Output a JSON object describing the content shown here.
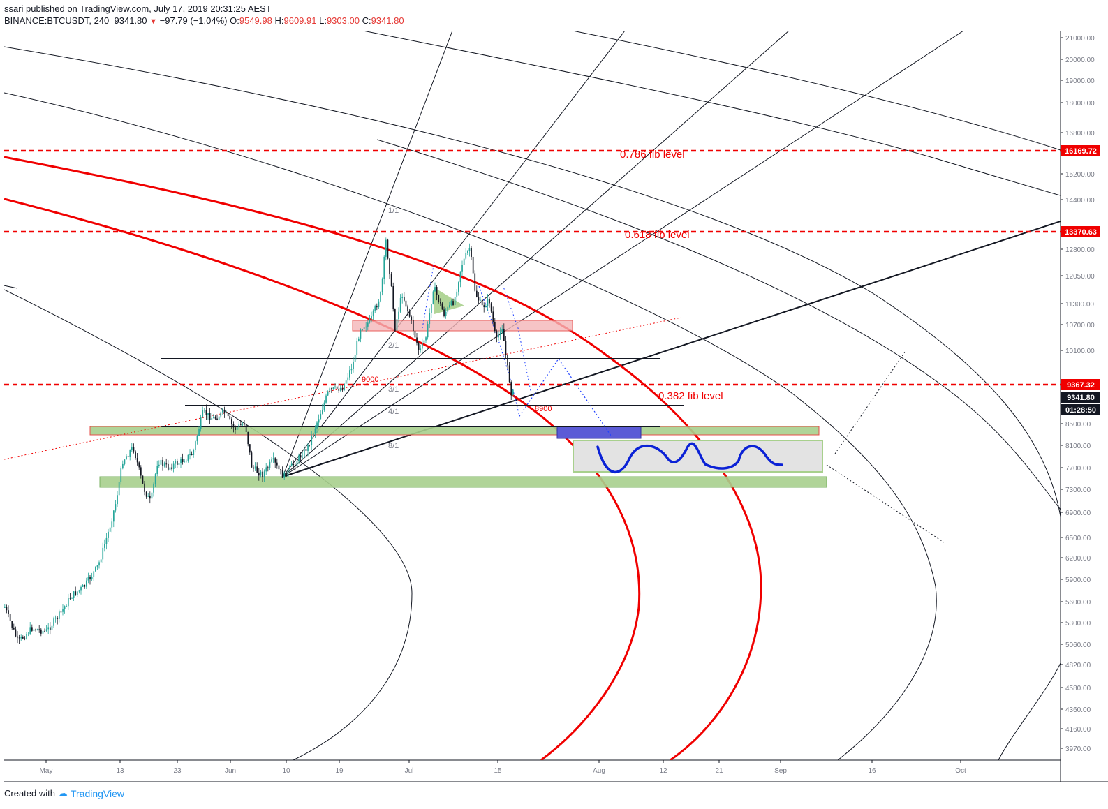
{
  "header": {
    "publisher_line": "ssari published on TradingView.com, July 17, 2019 20:31:25 AEST",
    "symbol": "BINANCE:BTCUSDT, 240",
    "last": "9341.80",
    "change": "−97.79 (−1.04%)",
    "o_label": "O:",
    "o_value": "9549.98",
    "h_label": "H:",
    "h_value": "9609.91",
    "l_label": "L:",
    "l_value": "9303.00",
    "c_label": "C:",
    "c_value": "9341.80"
  },
  "footer": {
    "created_with": "Created with",
    "brand": "TradingView"
  },
  "colors": {
    "fib_red": "#f00000",
    "axis_text": "#787b86",
    "candle_up": "#26a69a",
    "candle_down": "#131722",
    "green_zone": "#a8d08d",
    "pink_zone": "#f4b6b8",
    "blue_box": "#5b5bd6",
    "path_blue": "#0b22d6"
  },
  "chart_data": {
    "type": "candlestick",
    "title": "BINANCE:BTCUSDT, 240",
    "x_tick_labels": [
      "May",
      "13",
      "23",
      "Jun",
      "10",
      "19",
      "Jul",
      "15",
      "Aug",
      "12",
      "21",
      "Sep",
      "16",
      "Oct"
    ],
    "y_tick_labels": [
      "21000.00",
      "20000.00",
      "19000.00",
      "18000.00",
      "16800.00",
      "15200.00",
      "14400.00",
      "12800.00",
      "12050.00",
      "11300.00",
      "10700.00",
      "10100.00",
      "8500.00",
      "8100.00",
      "7700.00",
      "7300.00",
      "6900.00",
      "6500.00",
      "6200.00",
      "5900.00",
      "5600.00",
      "5300.00",
      "5060.00",
      "4820.00",
      "4580.00",
      "4360.00",
      "4160.00",
      "3970.00"
    ],
    "ylim": [
      3900,
      21600
    ],
    "y_scale": "log",
    "price_tags": [
      {
        "value": "16169.72",
        "style": "red"
      },
      {
        "value": "13370.63",
        "style": "red"
      },
      {
        "value": "9367.32",
        "style": "red"
      },
      {
        "value": "9341.80",
        "style": "black"
      },
      {
        "value": "01:28:50",
        "style": "black"
      }
    ],
    "fib_levels": [
      {
        "price": 16169.72,
        "label": "0.786 fib level"
      },
      {
        "price": 13370.63,
        "label": "0.618 fib level"
      },
      {
        "price": 9367.32,
        "label": "0.382 fib level"
      }
    ],
    "annotations": [
      "9000",
      "8900"
    ],
    "gann_fan_labels": [
      "1/1",
      "2/1",
      "3/1",
      "4/1",
      "8/1"
    ],
    "ohlc_last": {
      "open": 9549.98,
      "high": 9609.91,
      "low": 9303.0,
      "close": 9341.8
    }
  }
}
